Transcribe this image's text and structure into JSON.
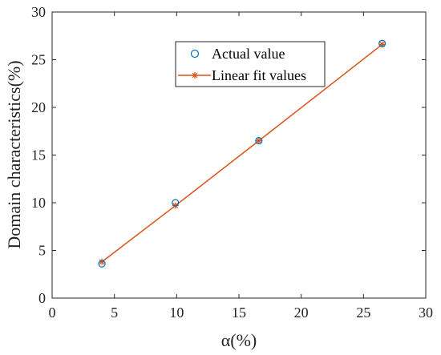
{
  "chart_data": {
    "type": "scatter",
    "xlabel": "α(%)",
    "ylabel": "Domain characteristics(%)",
    "xlim": [
      0,
      30
    ],
    "ylim": [
      0,
      30
    ],
    "xticks": [
      "0",
      "5",
      "10",
      "15",
      "20",
      "25",
      "30"
    ],
    "yticks": [
      "0",
      "5",
      "10",
      "15",
      "20",
      "25",
      "30"
    ],
    "grid": false,
    "legend_position": "top-center",
    "series": [
      {
        "name": "Actual value",
        "kind": "scatter",
        "marker": "circle",
        "color": "#0072BD",
        "x": [
          4.0,
          9.9,
          16.6,
          26.5
        ],
        "y": [
          3.6,
          10.0,
          16.5,
          26.7
        ]
      },
      {
        "name": "Linear fit values",
        "kind": "line",
        "marker": "asterisk",
        "color": "#D95319",
        "x": [
          4.0,
          9.9,
          16.6,
          26.5
        ],
        "y": [
          3.8,
          9.7,
          16.5,
          26.6
        ]
      }
    ]
  }
}
